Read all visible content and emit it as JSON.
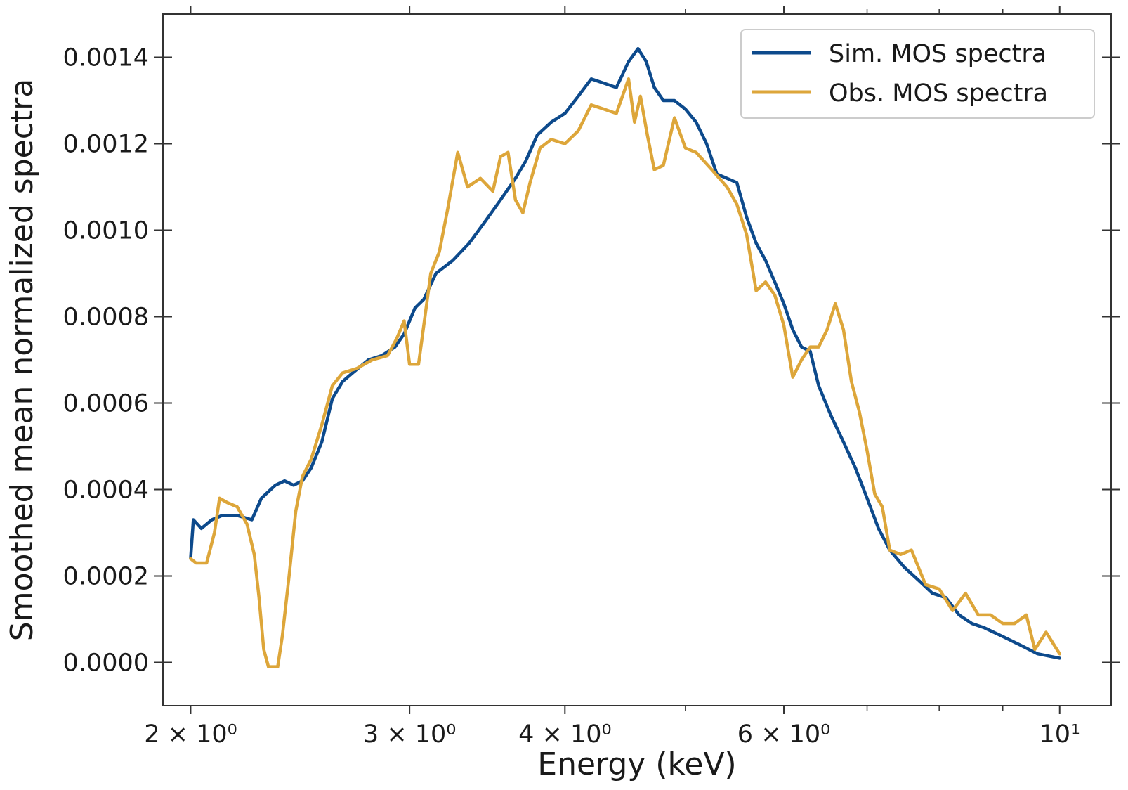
{
  "chart_data": {
    "type": "line",
    "title": "",
    "xlabel": "Energy (keV)",
    "ylabel": "Smoothed mean normalized spectra",
    "xscale": "log",
    "xlim": [
      1.9,
      11.0
    ],
    "ylim": [
      -0.0001,
      0.0015
    ],
    "grid": false,
    "legend_position": "top-right",
    "x_ticks": [
      {
        "value": 2,
        "label": "2 × 10⁰"
      },
      {
        "value": 3,
        "label": "3 × 10⁰"
      },
      {
        "value": 4,
        "label": "4 × 10⁰"
      },
      {
        "value": 6,
        "label": "6 × 10⁰"
      },
      {
        "value": 10,
        "label": "10¹"
      }
    ],
    "x_minor_ticks": [
      5,
      7,
      8,
      9
    ],
    "y_ticks": [
      {
        "value": 0.0,
        "label": "0.0000"
      },
      {
        "value": 0.0002,
        "label": "0.0002"
      },
      {
        "value": 0.0004,
        "label": "0.0004"
      },
      {
        "value": 0.0006,
        "label": "0.0006"
      },
      {
        "value": 0.0008,
        "label": "0.0008"
      },
      {
        "value": 0.001,
        "label": "0.0010"
      },
      {
        "value": 0.0012,
        "label": "0.0012"
      },
      {
        "value": 0.0014,
        "label": "0.0014"
      }
    ],
    "series": [
      {
        "name": "Sim. MOS spectra",
        "color": "#0d4a8c",
        "points": [
          [
            2.0,
            0.00024
          ],
          [
            2.01,
            0.00033
          ],
          [
            2.04,
            0.00031
          ],
          [
            2.08,
            0.00033
          ],
          [
            2.12,
            0.00034
          ],
          [
            2.18,
            0.00034
          ],
          [
            2.24,
            0.00033
          ],
          [
            2.28,
            0.00038
          ],
          [
            2.34,
            0.00041
          ],
          [
            2.38,
            0.00042
          ],
          [
            2.42,
            0.00041
          ],
          [
            2.46,
            0.00042
          ],
          [
            2.5,
            0.00045
          ],
          [
            2.55,
            0.00051
          ],
          [
            2.6,
            0.00061
          ],
          [
            2.65,
            0.00065
          ],
          [
            2.7,
            0.00067
          ],
          [
            2.78,
            0.0007
          ],
          [
            2.85,
            0.00071
          ],
          [
            2.92,
            0.00073
          ],
          [
            2.97,
            0.00076
          ],
          [
            3.03,
            0.00082
          ],
          [
            3.08,
            0.00084
          ],
          [
            3.15,
            0.0009
          ],
          [
            3.25,
            0.00093
          ],
          [
            3.35,
            0.00097
          ],
          [
            3.45,
            0.00102
          ],
          [
            3.55,
            0.00107
          ],
          [
            3.65,
            0.00112
          ],
          [
            3.72,
            0.00116
          ],
          [
            3.8,
            0.00122
          ],
          [
            3.9,
            0.00125
          ],
          [
            4.0,
            0.00127
          ],
          [
            4.1,
            0.00131
          ],
          [
            4.2,
            0.00135
          ],
          [
            4.3,
            0.00134
          ],
          [
            4.4,
            0.00133
          ],
          [
            4.5,
            0.00139
          ],
          [
            4.58,
            0.00142
          ],
          [
            4.65,
            0.00139
          ],
          [
            4.72,
            0.00133
          ],
          [
            4.8,
            0.0013
          ],
          [
            4.9,
            0.0013
          ],
          [
            5.0,
            0.00128
          ],
          [
            5.1,
            0.00125
          ],
          [
            5.2,
            0.0012
          ],
          [
            5.3,
            0.00113
          ],
          [
            5.4,
            0.00112
          ],
          [
            5.5,
            0.00111
          ],
          [
            5.6,
            0.00103
          ],
          [
            5.7,
            0.00097
          ],
          [
            5.8,
            0.00093
          ],
          [
            5.9,
            0.00088
          ],
          [
            6.0,
            0.00083
          ],
          [
            6.1,
            0.00077
          ],
          [
            6.2,
            0.00073
          ],
          [
            6.3,
            0.00072
          ],
          [
            6.4,
            0.00064
          ],
          [
            6.55,
            0.00057
          ],
          [
            6.7,
            0.00051
          ],
          [
            6.85,
            0.00045
          ],
          [
            7.0,
            0.00038
          ],
          [
            7.15,
            0.00031
          ],
          [
            7.3,
            0.00026
          ],
          [
            7.5,
            0.00022
          ],
          [
            7.7,
            0.00019
          ],
          [
            7.9,
            0.00016
          ],
          [
            8.1,
            0.00015
          ],
          [
            8.3,
            0.00011
          ],
          [
            8.5,
            9e-05
          ],
          [
            8.7,
            8e-05
          ],
          [
            9.0,
            6e-05
          ],
          [
            9.3,
            4e-05
          ],
          [
            9.6,
            2e-05
          ],
          [
            10.0,
            1e-05
          ]
        ]
      },
      {
        "name": "Obs. MOS spectra",
        "color": "#dda63a",
        "points": [
          [
            2.0,
            0.00024
          ],
          [
            2.02,
            0.00023
          ],
          [
            2.06,
            0.00023
          ],
          [
            2.09,
            0.0003
          ],
          [
            2.11,
            0.00038
          ],
          [
            2.14,
            0.00037
          ],
          [
            2.18,
            0.00036
          ],
          [
            2.22,
            0.00032
          ],
          [
            2.25,
            0.00025
          ],
          [
            2.27,
            0.00015
          ],
          [
            2.29,
            3e-05
          ],
          [
            2.31,
            -1e-05
          ],
          [
            2.35,
            -1e-05
          ],
          [
            2.37,
            6e-05
          ],
          [
            2.4,
            0.0002
          ],
          [
            2.43,
            0.00035
          ],
          [
            2.46,
            0.00043
          ],
          [
            2.5,
            0.00047
          ],
          [
            2.55,
            0.00055
          ],
          [
            2.6,
            0.00064
          ],
          [
            2.65,
            0.00067
          ],
          [
            2.72,
            0.00068
          ],
          [
            2.8,
            0.0007
          ],
          [
            2.88,
            0.00071
          ],
          [
            2.93,
            0.00075
          ],
          [
            2.97,
            0.00079
          ],
          [
            3.0,
            0.00069
          ],
          [
            3.05,
            0.00069
          ],
          [
            3.08,
            0.00078
          ],
          [
            3.12,
            0.0009
          ],
          [
            3.17,
            0.00095
          ],
          [
            3.22,
            0.00105
          ],
          [
            3.28,
            0.00118
          ],
          [
            3.34,
            0.0011
          ],
          [
            3.42,
            0.00112
          ],
          [
            3.5,
            0.00109
          ],
          [
            3.55,
            0.00117
          ],
          [
            3.6,
            0.00118
          ],
          [
            3.65,
            0.00107
          ],
          [
            3.7,
            0.00104
          ],
          [
            3.75,
            0.00111
          ],
          [
            3.82,
            0.00119
          ],
          [
            3.9,
            0.00121
          ],
          [
            4.0,
            0.0012
          ],
          [
            4.1,
            0.00123
          ],
          [
            4.2,
            0.00129
          ],
          [
            4.3,
            0.00128
          ],
          [
            4.4,
            0.00127
          ],
          [
            4.5,
            0.00135
          ],
          [
            4.55,
            0.00125
          ],
          [
            4.6,
            0.00131
          ],
          [
            4.66,
            0.00122
          ],
          [
            4.72,
            0.00114
          ],
          [
            4.8,
            0.00115
          ],
          [
            4.9,
            0.00126
          ],
          [
            5.0,
            0.00119
          ],
          [
            5.1,
            0.00118
          ],
          [
            5.25,
            0.00114
          ],
          [
            5.4,
            0.0011
          ],
          [
            5.5,
            0.00106
          ],
          [
            5.6,
            0.00099
          ],
          [
            5.7,
            0.00086
          ],
          [
            5.8,
            0.00088
          ],
          [
            5.9,
            0.00085
          ],
          [
            6.0,
            0.00078
          ],
          [
            6.1,
            0.00066
          ],
          [
            6.2,
            0.0007
          ],
          [
            6.3,
            0.00073
          ],
          [
            6.4,
            0.00073
          ],
          [
            6.5,
            0.00077
          ],
          [
            6.6,
            0.00083
          ],
          [
            6.7,
            0.00077
          ],
          [
            6.8,
            0.00065
          ],
          [
            6.9,
            0.00058
          ],
          [
            7.0,
            0.00049
          ],
          [
            7.1,
            0.00039
          ],
          [
            7.2,
            0.00036
          ],
          [
            7.3,
            0.00026
          ],
          [
            7.45,
            0.00025
          ],
          [
            7.6,
            0.00026
          ],
          [
            7.8,
            0.00018
          ],
          [
            8.0,
            0.00017
          ],
          [
            8.2,
            0.00012
          ],
          [
            8.4,
            0.00016
          ],
          [
            8.6,
            0.00011
          ],
          [
            8.8,
            0.00011
          ],
          [
            9.0,
            9e-05
          ],
          [
            9.2,
            9e-05
          ],
          [
            9.4,
            0.00011
          ],
          [
            9.55,
            3e-05
          ],
          [
            9.75,
            7e-05
          ],
          [
            10.0,
            2e-05
          ]
        ]
      }
    ]
  }
}
